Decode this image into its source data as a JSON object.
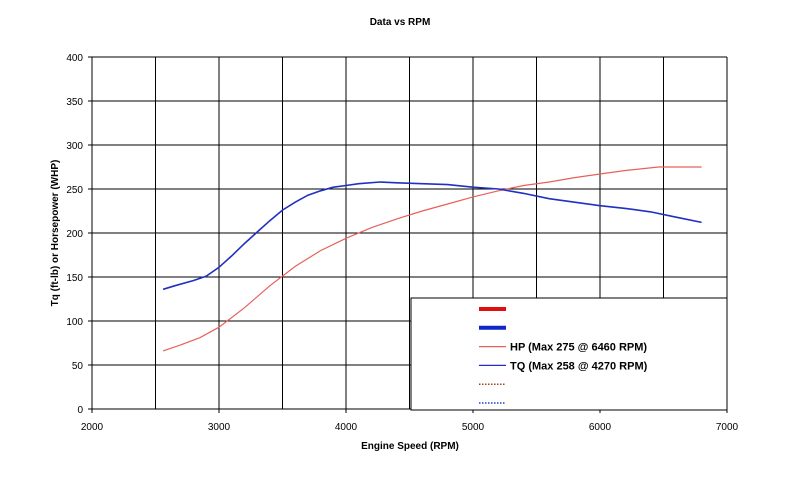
{
  "chart_data": {
    "type": "line",
    "title": "Data vs RPM",
    "xlabel": "Engine Speed (RPM)",
    "ylabel": "Tq (ft-lb) or Horsepower (WHP)",
    "xlim": [
      2000,
      7000
    ],
    "ylim": [
      0,
      400
    ],
    "xticks": [
      "2000",
      "3000",
      "4000",
      "5000",
      "6000",
      "7000"
    ],
    "yticks": [
      "0",
      "50",
      "100",
      "150",
      "200",
      "250",
      "300",
      "350",
      "400"
    ],
    "grid": true,
    "legend_position": "bottom-right",
    "colors": {
      "hp": "#e8605a",
      "tq": "#2030c0",
      "hp_thick": "#e01010",
      "tq_thick": "#1028c8",
      "hp_dotted": "#a04020",
      "tq_dotted": "#2040c0"
    },
    "legend": [
      {
        "label": "",
        "style": "thick",
        "color": "#e01010"
      },
      {
        "label": "",
        "style": "thick",
        "color": "#1028c8"
      },
      {
        "label": "HP (Max 275 @ 6460 RPM)",
        "style": "thin",
        "color": "#e8605a"
      },
      {
        "label": "TQ (Max 258 @ 4270 RPM)",
        "style": "thin",
        "color": "#2030c0"
      },
      {
        "label": "",
        "style": "dotted",
        "color": "#a04020"
      },
      {
        "label": "",
        "style": "dotted",
        "color": "#2040c0"
      }
    ],
    "series": [
      {
        "name": "HP (Max 275 @ 6460 RPM)",
        "color": "#e8605a",
        "x": [
          2560,
          2700,
          2850,
          3000,
          3200,
          3400,
          3600,
          3800,
          4000,
          4200,
          4400,
          4600,
          4800,
          5000,
          5200,
          5400,
          5600,
          5800,
          6000,
          6200,
          6460,
          6600,
          6800
        ],
        "y": [
          66,
          73,
          81,
          93,
          115,
          140,
          162,
          180,
          194,
          206,
          216,
          225,
          233,
          241,
          248,
          254,
          258,
          263,
          267,
          271,
          275,
          275,
          275
        ]
      },
      {
        "name": "TQ (Max 258 @ 4270 RPM)",
        "color": "#2030c0",
        "x": [
          2560,
          2650,
          2800,
          2900,
          3000,
          3100,
          3200,
          3300,
          3400,
          3500,
          3600,
          3700,
          3800,
          3900,
          4000,
          4100,
          4270,
          4400,
          4600,
          4800,
          5000,
          5200,
          5400,
          5600,
          5800,
          6000,
          6200,
          6400,
          6600,
          6800
        ],
        "y": [
          136,
          140,
          146,
          151,
          161,
          174,
          188,
          201,
          214,
          226,
          235,
          243,
          248,
          252,
          254,
          256,
          258,
          257,
          256,
          255,
          252,
          250,
          245,
          239,
          235,
          231,
          228,
          224,
          218,
          212
        ]
      }
    ]
  }
}
